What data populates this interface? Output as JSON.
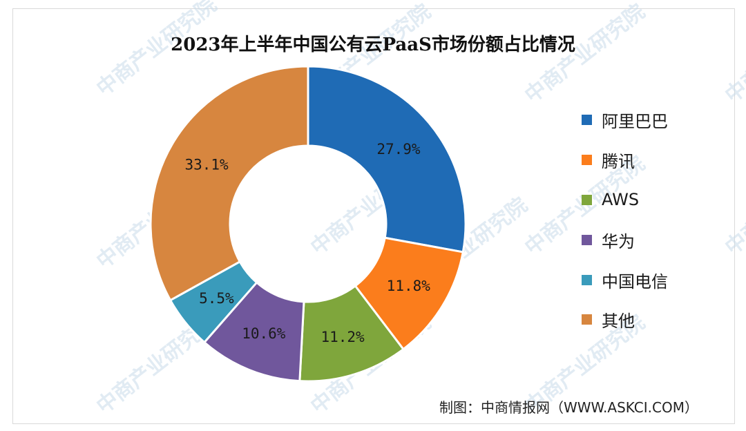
{
  "chart_data": {
    "type": "pie",
    "title": "2023年上半年中国公有云PaaS市场份额占比情况",
    "categories": [
      "阿里巴巴",
      "腾讯",
      "AWS",
      "华为",
      "中国电信",
      "其他"
    ],
    "values": [
      27.9,
      11.8,
      11.2,
      10.6,
      5.5,
      33.1
    ],
    "value_labels": [
      "27.9%",
      "11.8%",
      "11.2%",
      "10.6%",
      "5.5%",
      "33.1%"
    ],
    "colors": [
      "#1f6bb5",
      "#fb7d1c",
      "#7fa63c",
      "#70579c",
      "#3a9bbb",
      "#d7863f"
    ],
    "legend_position": "right",
    "donut": true
  },
  "watermark": "中商产业研究院",
  "source": "制图：中商情报网（WWW.ASKCI.COM）"
}
